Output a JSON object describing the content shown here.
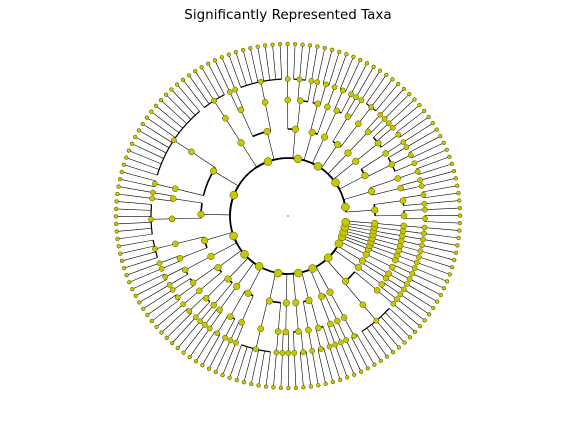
{
  "chart_data": {
    "type": "cladogram",
    "title": "Significantly Represented Taxa",
    "layout": "circular",
    "node_color": "#c8c800",
    "branch_color": "#000000",
    "background": "#ffffff",
    "grid": false,
    "legend": "none",
    "levels": 6,
    "taxa_count": 257
  }
}
